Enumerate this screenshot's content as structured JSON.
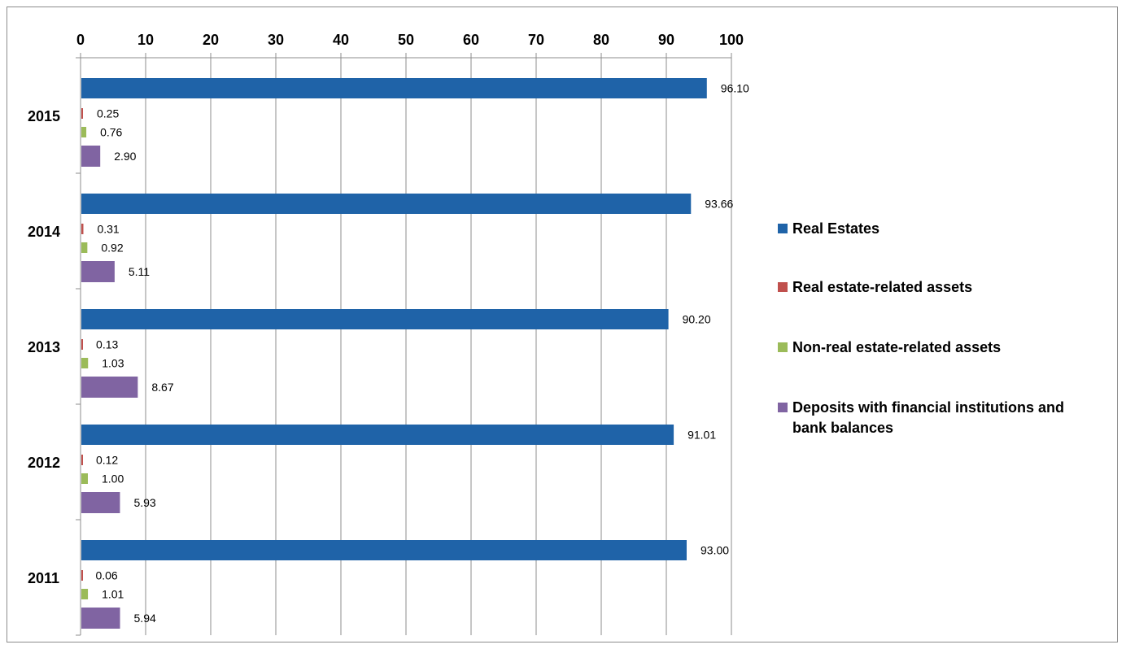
{
  "chart_data": {
    "type": "bar",
    "orientation": "horizontal",
    "categories": [
      "2015",
      "2014",
      "2013",
      "2012",
      "2011"
    ],
    "series": [
      {
        "name": "Real Estates",
        "color": "#1f63a8",
        "values": [
          96.1,
          93.66,
          90.2,
          91.01,
          93.0
        ],
        "labels": [
          "96.10",
          "93.66",
          "90.20",
          "91.01",
          "93.00"
        ]
      },
      {
        "name": "Real estate-related assets",
        "color": "#c0504d",
        "values": [
          0.25,
          0.31,
          0.13,
          0.12,
          0.06
        ],
        "labels": [
          "0.25",
          "0.31",
          "0.13",
          "0.12",
          "0.06"
        ]
      },
      {
        "name": "Non-real estate-related assets",
        "color": "#9bbb59",
        "values": [
          0.76,
          0.92,
          1.03,
          1.0,
          1.01
        ],
        "labels": [
          "0.76",
          "0.92",
          "1.03",
          "1.00",
          "1.01"
        ]
      },
      {
        "name": "Deposits with financial institutions and bank balances",
        "color": "#8064a2",
        "values": [
          2.9,
          5.11,
          8.67,
          5.93,
          5.94
        ],
        "labels": [
          "2.90",
          "5.11",
          "8.67",
          "5.93",
          "5.94"
        ]
      }
    ],
    "xlim": [
      0,
      100
    ],
    "x_ticks": [
      "0",
      "10",
      "20",
      "30",
      "40",
      "50",
      "60",
      "70",
      "80",
      "90",
      "100"
    ],
    "x_axis_position": "top",
    "grid": "vertical",
    "legend_position": "right",
    "legend_lines": [
      [
        "Real Estates"
      ],
      [
        "Real estate-related assets"
      ],
      [
        "Non-real estate-related assets"
      ],
      [
        "Deposits with financial institutions and",
        "bank balances"
      ]
    ]
  }
}
